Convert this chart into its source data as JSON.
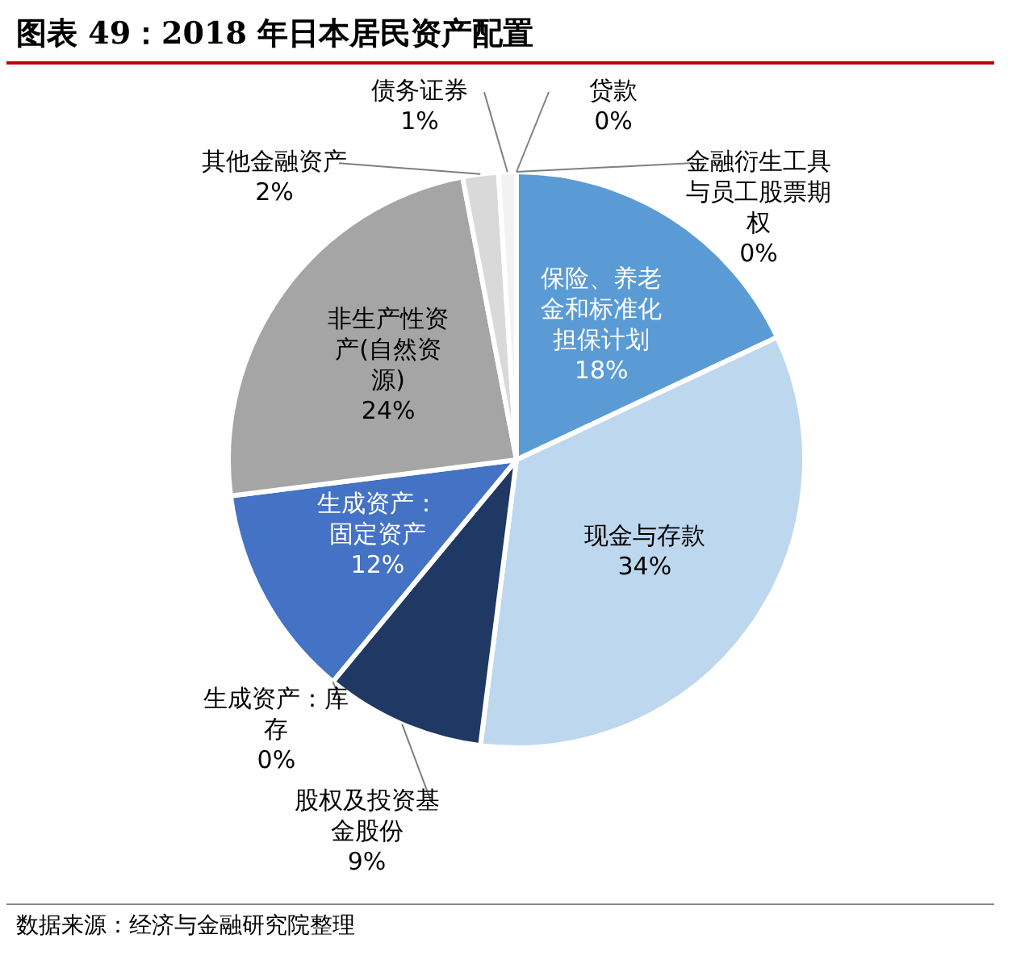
{
  "chart_data": {
    "type": "pie",
    "title": "图表 49：2018 年日本居民资产配置",
    "categories": [
      "贷款",
      "金融衍生工具与员工股票期权",
      "保险、养老金和标准化担保计划",
      "现金与存款",
      "股权及投资基金股份",
      "生成资产：库存",
      "生成资产：固定资产",
      "非生产性资产(自然资源)",
      "其他金融资产",
      "债务证券"
    ],
    "values": [
      0,
      0,
      18,
      34,
      9,
      0,
      12,
      24,
      2,
      1
    ],
    "value_labels": [
      "0%",
      "0%",
      "18%",
      "34%",
      "9%",
      "0%",
      "12%",
      "24%",
      "2%",
      "1%"
    ],
    "colors": [
      "#ed7d31",
      "#ffc000",
      "#5b9bd5",
      "#bdd7ee",
      "#1f3864",
      "#264478",
      "#4472c4",
      "#a5a5a5",
      "#d9d9d9",
      "#f2f2f2"
    ],
    "legend": false,
    "annotations": [
      "数据来源：经济与金融研究院整理"
    ]
  }
}
